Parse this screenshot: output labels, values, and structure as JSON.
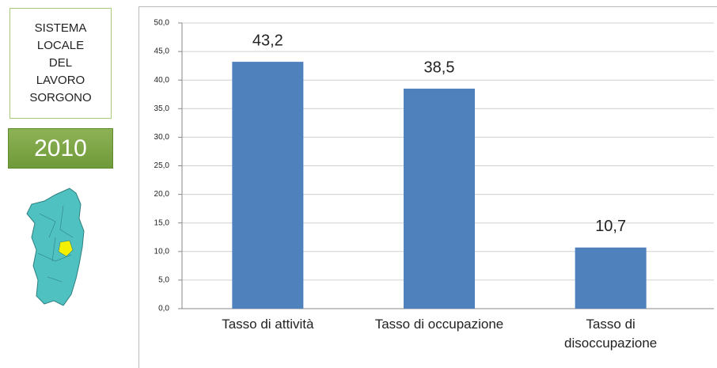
{
  "panel": {
    "title": "SISTEMA LOCALE DEL LAVORO SORGONO",
    "year": "2010"
  },
  "chart_data": {
    "type": "bar",
    "categories": [
      "Tasso di attività",
      "Tasso di occupazione",
      "Tasso di disoccupazione"
    ],
    "values": [
      43.2,
      38.5,
      10.7
    ],
    "value_labels": [
      "43,2",
      "38,5",
      "10,7"
    ],
    "color": "#4f81bd",
    "ylim": [
      0,
      50
    ],
    "yticks": [
      {
        "value": 0,
        "label": "0,0"
      },
      {
        "value": 5,
        "label": "5,0"
      },
      {
        "value": 10,
        "label": "10,0"
      },
      {
        "value": 15,
        "label": "15,0"
      },
      {
        "value": 20,
        "label": "20,0"
      },
      {
        "value": 25,
        "label": "25,0"
      },
      {
        "value": 30,
        "label": "30,0"
      },
      {
        "value": 35,
        "label": "35,0"
      },
      {
        "value": 40,
        "label": "40,0"
      },
      {
        "value": 45,
        "label": "45,0"
      },
      {
        "value": 50,
        "label": "50,0"
      }
    ],
    "grid": true
  }
}
